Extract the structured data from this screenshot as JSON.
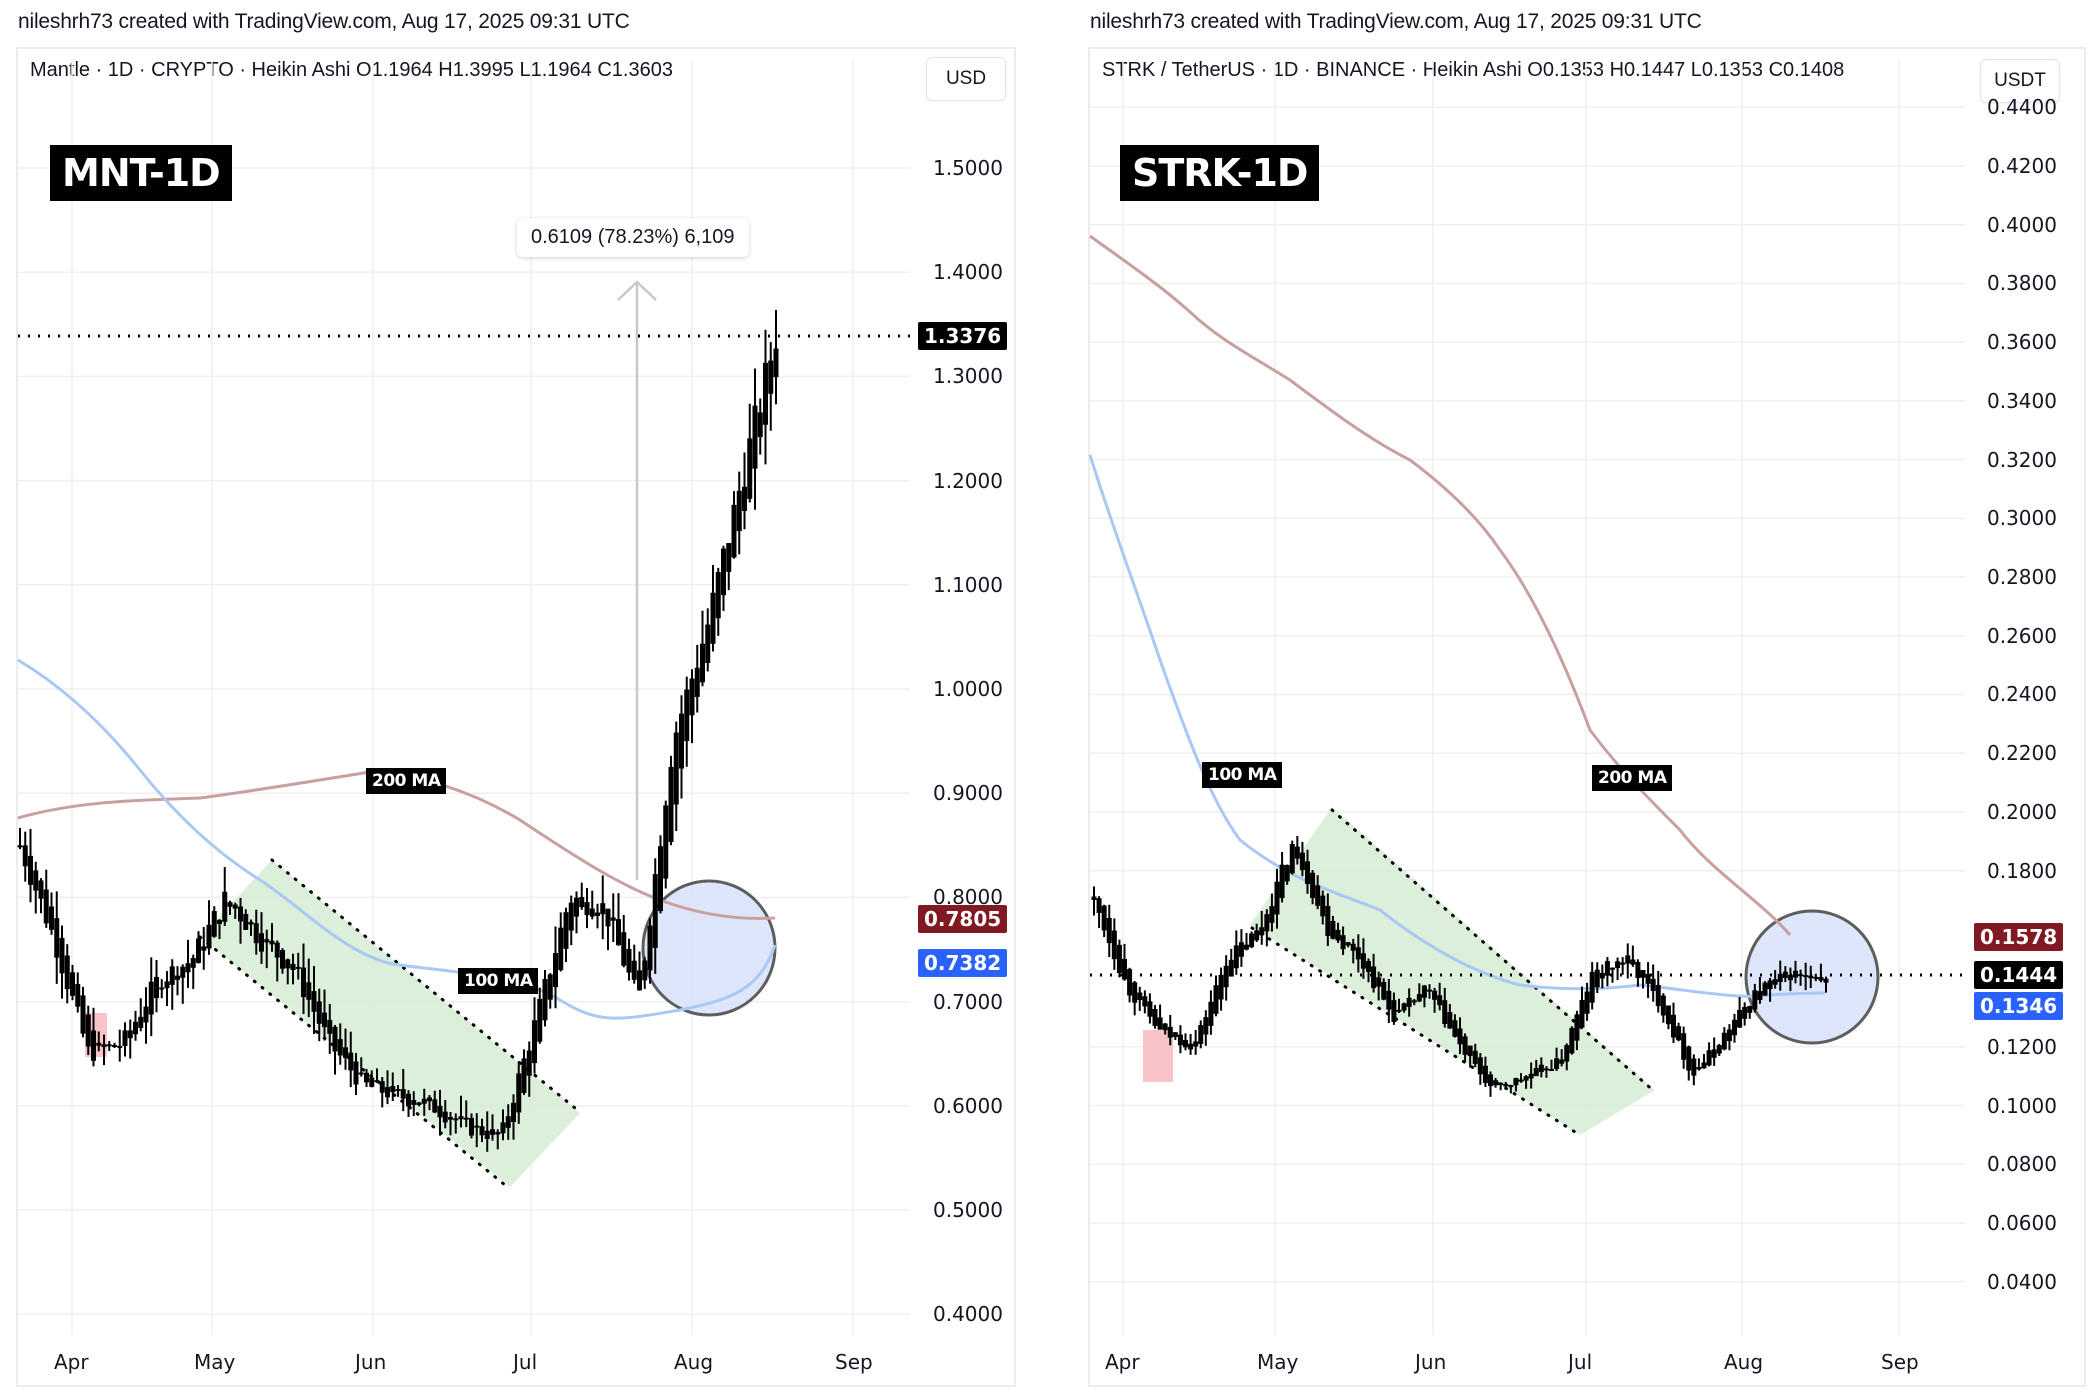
{
  "credit_left": "nileshrh73 created with TradingView.com, Aug 17, 2025 09:31 UTC",
  "credit_right": "nileshrh73 created with TradingView.com, Aug 17, 2025 09:31 UTC",
  "left": {
    "symbol_line": "Mantle · 1D · CRYPTO · Heikin Ashi  O1.1964  H1.3995  L1.1964  C1.3603",
    "currency": "USD",
    "tag": "MNT-1D",
    "measure": "0.6109 (78.23%) 6,109",
    "ma200_label": "200 MA",
    "ma100_label": "100 MA",
    "price_tags": {
      "last": "1.3376",
      "ma200": "0.7805",
      "ma100": "0.7382"
    },
    "y_ticks": [
      "1.5000",
      "1.4000",
      "1.3000",
      "1.2000",
      "1.1000",
      "1.0000",
      "0.9000",
      "0.8000",
      "0.7000",
      "0.6000",
      "0.5000",
      "0.4000"
    ],
    "months": [
      "Apr",
      "May",
      "Jun",
      "Jul",
      "Aug",
      "Sep"
    ]
  },
  "right": {
    "symbol_line": "STRK / TetherUS · 1D · BINANCE · Heikin Ashi  O0.1353  H0.1447  L0.1353  C0.1408",
    "currency": "USDT",
    "tag": "STRK-1D",
    "ma100_label": "100 MA",
    "ma200_label": "200 MA",
    "price_tags": {
      "ma200": "0.1578",
      "last": "0.1444",
      "ma100": "0.1346"
    },
    "y_ticks": [
      "0.4400",
      "0.4200",
      "0.4000",
      "0.3800",
      "0.3600",
      "0.3400",
      "0.3200",
      "0.3000",
      "0.2800",
      "0.2600",
      "0.2400",
      "0.2200",
      "0.2000",
      "0.1800",
      "0.1200",
      "0.1000",
      "0.0800",
      "0.0600",
      "0.0400"
    ],
    "months": [
      "Apr",
      "May",
      "Jun",
      "Jul",
      "Aug",
      "Sep"
    ]
  },
  "colors": {
    "ma200": "#c9a0a0",
    "ma100": "#a9c8f5",
    "ma200_tag": "#801922",
    "ma100_tag": "#2962ff",
    "channel": "#d6ecd3",
    "circle": "#dde5fb",
    "pink": "#f8c4c9"
  },
  "chart_data": [
    {
      "type": "candlestick",
      "title": "MNT-1D (Mantle · 1D · CRYPTO · Heikin Ashi)",
      "xlabel": "",
      "ylabel": "USD",
      "ylim": [
        0.4,
        1.5
      ],
      "x_ticks": [
        "Apr",
        "May",
        "Jun",
        "Jul",
        "Aug",
        "Sep"
      ],
      "ohlc_last": {
        "open": 1.1964,
        "high": 1.3995,
        "low": 1.1964,
        "close": 1.3603
      },
      "last_price": 1.3376,
      "series": [
        {
          "name": "Price (approx closes)",
          "x": [
            "Mar 25",
            "Apr 1",
            "Apr 8",
            "Apr 15",
            "Apr 22",
            "Apr 29",
            "May 6",
            "May 13",
            "May 20",
            "May 27",
            "Jun 3",
            "Jun 10",
            "Jun 17",
            "Jun 24",
            "Jul 1",
            "Jul 8",
            "Jul 15",
            "Jul 22",
            "Jul 29",
            "Aug 5",
            "Aug 10",
            "Aug 14",
            "Aug 17"
          ],
          "values": [
            0.85,
            0.76,
            0.65,
            0.66,
            0.72,
            0.74,
            0.8,
            0.76,
            0.73,
            0.66,
            0.62,
            0.61,
            0.6,
            0.58,
            0.57,
            0.68,
            0.8,
            0.79,
            0.7,
            0.95,
            1.06,
            1.2,
            1.34
          ]
        },
        {
          "name": "200 MA",
          "values_start_end": [
            0.87,
            0.7805
          ]
        },
        {
          "name": "100 MA",
          "values_start_end": [
            1.03,
            0.7382
          ]
        }
      ],
      "annotations": [
        "MNT-1D",
        "200 MA",
        "100 MA",
        "0.6109 (78.23%) 6,109",
        "descending channel Apr–Jul",
        "circle near Aug breakout"
      ]
    },
    {
      "type": "candlestick",
      "title": "STRK-1D (STRK / TetherUS · 1D · BINANCE · Heikin Ashi)",
      "xlabel": "",
      "ylabel": "USDT",
      "ylim": [
        0.03,
        0.445
      ],
      "x_ticks": [
        "Apr",
        "May",
        "Jun",
        "Jul",
        "Aug",
        "Sep"
      ],
      "ohlc_last": {
        "open": 0.1353,
        "high": 0.1447,
        "low": 0.1353,
        "close": 0.1408
      },
      "last_price": 0.1444,
      "series": [
        {
          "name": "Price (approx closes)",
          "x": [
            "Mar 25",
            "Apr 1",
            "Apr 8",
            "Apr 15",
            "Apr 22",
            "Apr 29",
            "May 6",
            "May 13",
            "May 20",
            "May 27",
            "Jun 3",
            "Jun 10",
            "Jun 17",
            "Jun 24",
            "Jul 1",
            "Jul 8",
            "Jul 15",
            "Jul 22",
            "Jul 29",
            "Aug 5",
            "Aug 10",
            "Aug 14",
            "Aug 17"
          ],
          "values": [
            0.17,
            0.14,
            0.125,
            0.12,
            0.15,
            0.16,
            0.19,
            0.16,
            0.15,
            0.13,
            0.14,
            0.12,
            0.105,
            0.11,
            0.115,
            0.145,
            0.15,
            0.135,
            0.11,
            0.125,
            0.14,
            0.145,
            0.1408
          ]
        },
        {
          "name": "200 MA",
          "values_start_end": [
            0.375,
            0.1578
          ]
        },
        {
          "name": "100 MA",
          "values_start_end": [
            0.32,
            0.1346
          ]
        }
      ],
      "annotations": [
        "STRK-1D",
        "100 MA",
        "200 MA",
        "descending channel May–Jul",
        "circle near mid-Aug"
      ]
    }
  ]
}
